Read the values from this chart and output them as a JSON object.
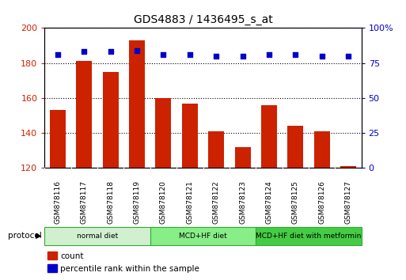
{
  "title": "GDS4883 / 1436495_s_at",
  "samples": [
    "GSM878116",
    "GSM878117",
    "GSM878118",
    "GSM878119",
    "GSM878120",
    "GSM878121",
    "GSM878122",
    "GSM878123",
    "GSM878124",
    "GSM878125",
    "GSM878126",
    "GSM878127"
  ],
  "counts": [
    153,
    181,
    175,
    193,
    160,
    157,
    141,
    132,
    156,
    144,
    141,
    121
  ],
  "percentile_ranks": [
    81,
    83,
    83,
    84,
    81,
    81,
    80,
    80,
    81,
    81,
    80,
    80
  ],
  "bar_color": "#cc2200",
  "dot_color": "#0000cc",
  "ylim_left": [
    120,
    200
  ],
  "ylim_right": [
    0,
    100
  ],
  "yticks_left": [
    120,
    140,
    160,
    180,
    200
  ],
  "yticks_right": [
    0,
    25,
    50,
    75,
    100
  ],
  "protocol_groups": [
    {
      "label": "normal diet",
      "start": 0,
      "end": 3,
      "color": "#d0f0d0"
    },
    {
      "label": "MCD+HF diet",
      "start": 4,
      "end": 7,
      "color": "#88ee88"
    },
    {
      "label": "MCD+HF diet with metformin",
      "start": 8,
      "end": 11,
      "color": "#44cc44"
    }
  ],
  "legend_items": [
    {
      "label": "count",
      "color": "#cc2200"
    },
    {
      "label": "percentile rank within the sample",
      "color": "#0000cc"
    }
  ],
  "tick_label_bg": "#c8c8c8",
  "plot_border_color": "#000000",
  "background_color": "#ffffff"
}
